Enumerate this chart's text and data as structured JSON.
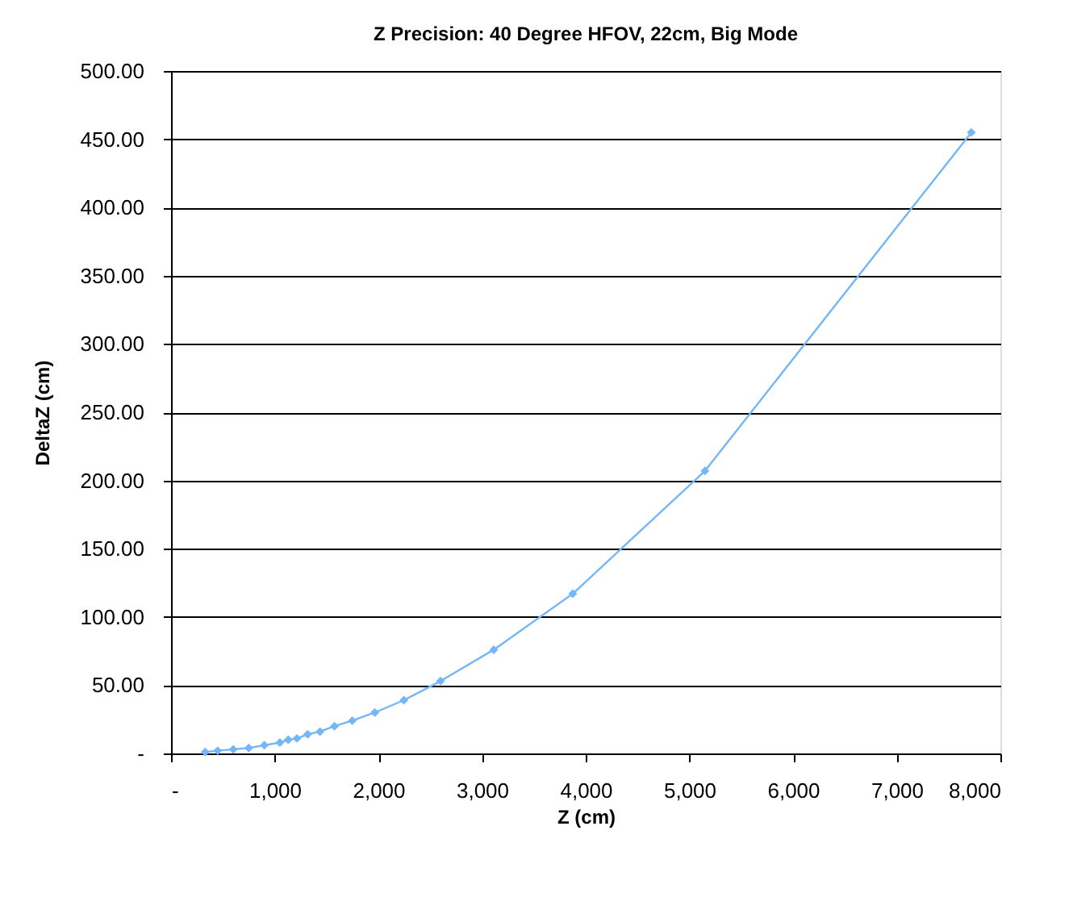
{
  "chart_data": {
    "type": "line",
    "title": "Z Precision: 40 Degree HFOV, 22cm, Big Mode",
    "xlabel": "Z (cm)",
    "ylabel": "DeltaZ (cm)",
    "x": [
      330,
      450,
      600,
      750,
      900,
      1050,
      1131,
      1214,
      1318,
      1437,
      1577,
      1748,
      1966,
      2246,
      2600,
      3113,
      3875,
      5150,
      7720
    ],
    "series": [
      {
        "color": "#74b6f7",
        "values": [
          1,
          2,
          3,
          4,
          6,
          8,
          10,
          11,
          14,
          16,
          20,
          24,
          30,
          39,
          53,
          76,
          117,
          207,
          455
        ]
      }
    ],
    "xlim": [
      0,
      8000
    ],
    "ylim": [
      0,
      500
    ],
    "xticks": [
      {
        "value": 0,
        "label": "-"
      },
      {
        "value": 1000,
        "label": "1,000"
      },
      {
        "value": 2000,
        "label": "2,000"
      },
      {
        "value": 3000,
        "label": "3,000"
      },
      {
        "value": 4000,
        "label": "4,000"
      },
      {
        "value": 5000,
        "label": "5,000"
      },
      {
        "value": 6000,
        "label": "6,000"
      },
      {
        "value": 7000,
        "label": "7,000"
      },
      {
        "value": 8000,
        "label": "8,000"
      }
    ],
    "yticks": [
      {
        "value": 0,
        "label": "-"
      },
      {
        "value": 50,
        "label": "50.00"
      },
      {
        "value": 100,
        "label": "100.00"
      },
      {
        "value": 150,
        "label": "150.00"
      },
      {
        "value": 200,
        "label": "200.00"
      },
      {
        "value": 250,
        "label": "250.00"
      },
      {
        "value": 300,
        "label": "300.00"
      },
      {
        "value": 350,
        "label": "350.00"
      },
      {
        "value": 400,
        "label": "400.00"
      },
      {
        "value": 450,
        "label": "450.00"
      },
      {
        "value": 500,
        "label": "500.00"
      }
    ],
    "grid": "y",
    "marker": "diamond",
    "line_style": "solid"
  }
}
